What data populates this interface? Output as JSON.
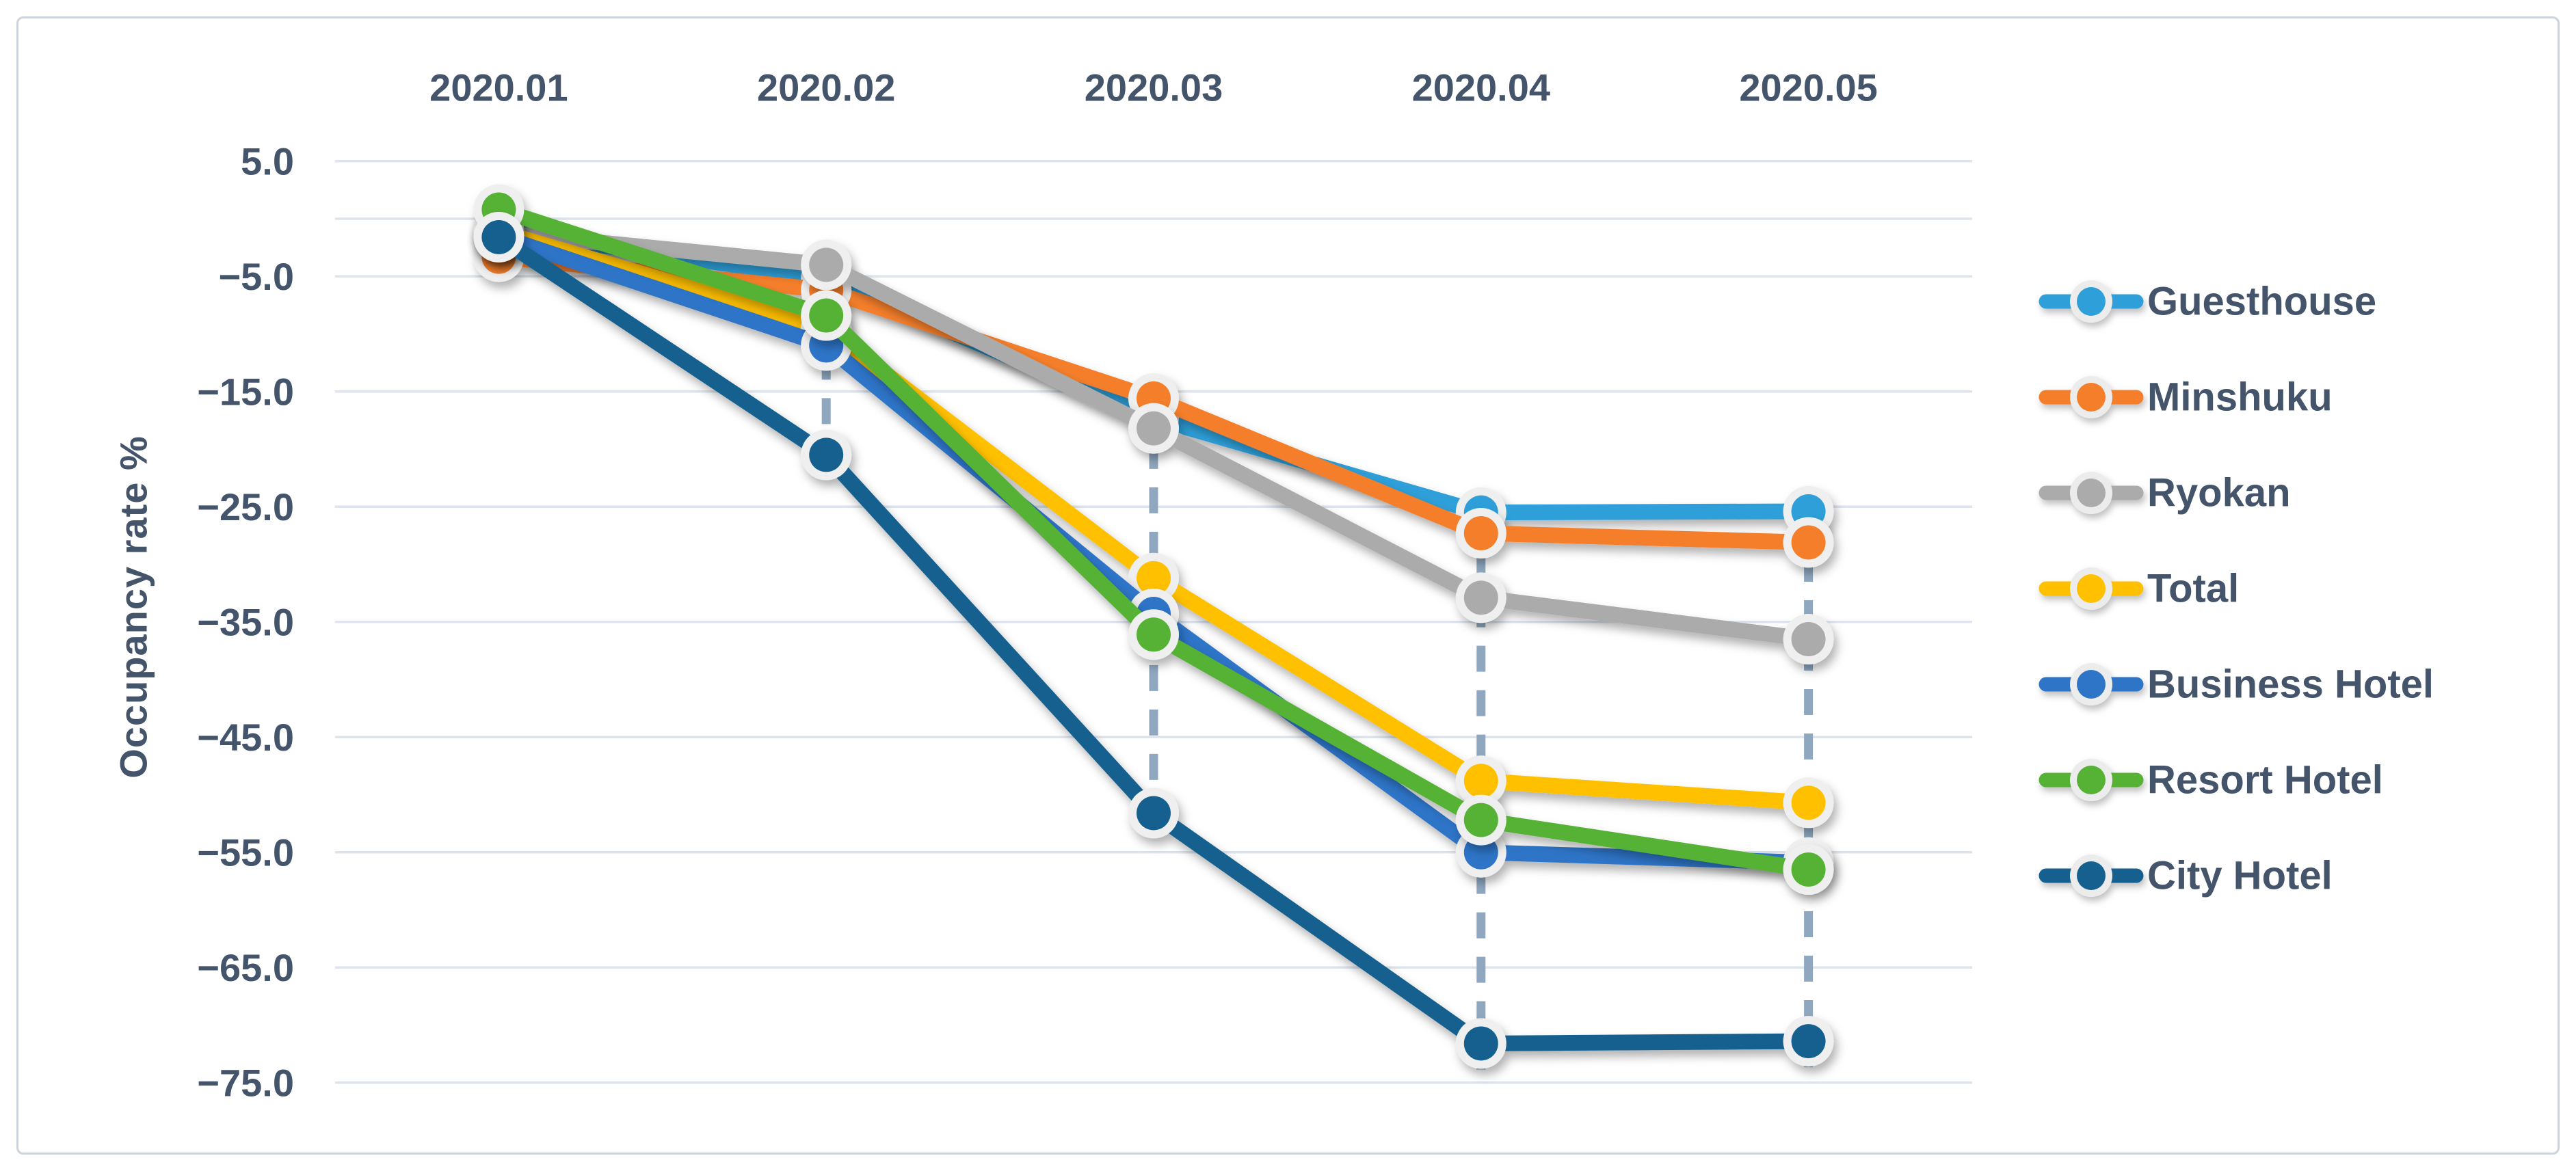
{
  "figure": {
    "background": "#ffffff",
    "border_color": "#ccd3da"
  },
  "chart_data": {
    "type": "line",
    "title": "",
    "xlabel": "",
    "ylabel": "Occupancy rate %",
    "categories": [
      "2020.01",
      "2020.02",
      "2020.03",
      "2020.04",
      "2020.05"
    ],
    "y_axis": {
      "tick_labels": [
        "5.0",
        "−5.0",
        "−15.0",
        "−25.0",
        "−35.0",
        "−45.0",
        "−55.0",
        "−65.0",
        "−75.0"
      ],
      "tick_values": [
        5,
        -5,
        -15,
        -25,
        -35,
        -45,
        -55,
        -65,
        -75
      ],
      "gridline_values": [
        5,
        0,
        -5,
        -15,
        -25,
        -35,
        -45,
        -55,
        -65,
        -75
      ],
      "min": -75,
      "max": 5
    },
    "series": [
      {
        "name": "Guesthouse",
        "color": "#2E9FD9",
        "values": [
          -1.0,
          -5.2,
          -17.3,
          -25.5,
          -25.4
        ]
      },
      {
        "name": "Minshuku",
        "color": "#F57E2A",
        "values": [
          -3.3,
          -6.2,
          -15.6,
          -27.3,
          -28.1
        ]
      },
      {
        "name": "Ryokan",
        "color": "#ABABAB",
        "values": [
          -1.2,
          -4.0,
          -18.2,
          -32.9,
          -36.5
        ]
      },
      {
        "name": "Total",
        "color": "#FFC000",
        "values": [
          -1.1,
          -9.5,
          -31.2,
          -48.8,
          -50.7
        ]
      },
      {
        "name": "Business Hotel",
        "color": "#2F74C8",
        "values": [
          -1.5,
          -11.0,
          -34.3,
          -55.0,
          -55.9
        ]
      },
      {
        "name": "Resort Hotel",
        "color": "#54B234",
        "values": [
          0.8,
          -8.4,
          -36.1,
          -52.2,
          -56.5
        ]
      },
      {
        "name": "City Hotel",
        "color": "#16618F",
        "values": [
          -1.6,
          -20.5,
          -51.6,
          -71.6,
          -71.4
        ]
      }
    ],
    "legend_position": "right",
    "grid": true,
    "drop_lines": true,
    "axis_text_color": "#44546A",
    "gridline_color": "#dde4ee",
    "drop_line_color": "#8FA8C0"
  }
}
